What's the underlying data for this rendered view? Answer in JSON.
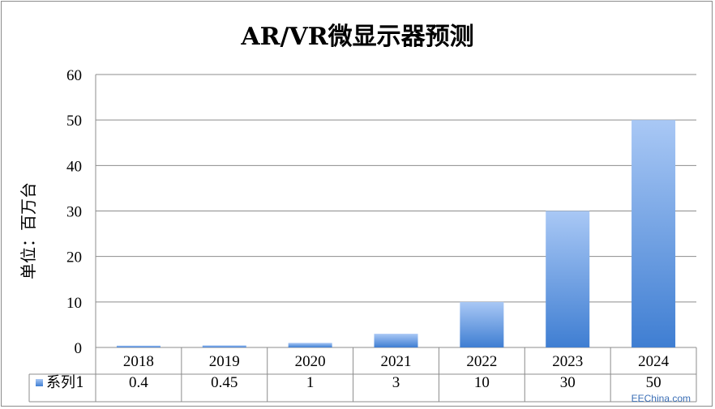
{
  "chart_data": {
    "type": "bar",
    "title": "AR/VR微显示器预测",
    "ylabel": "单位：百万台",
    "xlabel": "",
    "categories": [
      "2018",
      "2019",
      "2020",
      "2021",
      "2022",
      "2023",
      "2024"
    ],
    "series": [
      {
        "name": "系列1",
        "values": [
          0.4,
          0.45,
          1,
          3,
          10,
          30,
          50
        ]
      }
    ],
    "table_values": [
      "0.4",
      "0.45",
      "1",
      "3",
      "10",
      "30",
      "50"
    ],
    "ylim": [
      0,
      60
    ],
    "yticks": [
      "0",
      "10",
      "20",
      "30",
      "40",
      "50",
      "60"
    ],
    "grid": true,
    "legend": "data-table",
    "colors": {
      "bar_top": "#a9c8f5",
      "bar_bottom": "#3f7ed2",
      "grid": "#8c8c8c"
    }
  },
  "watermark": "EEChina.com"
}
